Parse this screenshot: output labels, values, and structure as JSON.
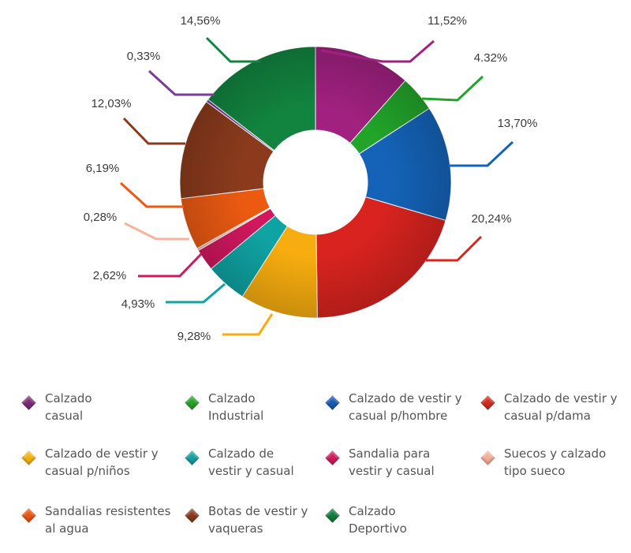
{
  "chart_data": {
    "type": "pie",
    "style": "donut",
    "slices": [
      {
        "label": "Calzado casual",
        "value": 11.52,
        "value_label": "11,52%",
        "color": "#a0217f"
      },
      {
        "label": "Calzado Industrial",
        "value": 4.32,
        "value_label": "4.32%",
        "color": "#22a42a"
      },
      {
        "label": "Calzado de vestir y casual p/hombre",
        "value": 13.7,
        "value_label": "13,70%",
        "color": "#1463b8"
      },
      {
        "label": "Calzado de vestir y casual p/dama",
        "value": 20.24,
        "value_label": "20,24%",
        "color": "#d8231f"
      },
      {
        "label": "Calzado de vestir y casual p/niños",
        "value": 9.28,
        "value_label": "9,28%",
        "color": "#f7ad0f"
      },
      {
        "label": "Calzado de vestir y casual",
        "value": 4.93,
        "value_label": "4,93%",
        "color": "#10a3a3"
      },
      {
        "label": "Sandalia para vestir y casual",
        "value": 2.62,
        "value_label": "2,62%",
        "color": "#d1175e"
      },
      {
        "label": "Suecos y calzado tipo sueco",
        "value": 0.28,
        "value_label": "0,28%",
        "color": "#f8b49a"
      },
      {
        "label": "Sandalias resistentes al agua",
        "value": 6.19,
        "value_label": "6,19%",
        "color": "#ec5a12"
      },
      {
        "label": "Botas de vestir y vaqueras",
        "value": 12.03,
        "value_label": "12,03%",
        "color": "#8b3b1c"
      },
      {
        "label": "",
        "value": 0.33,
        "value_label": "0,33%",
        "color": "#7a3d98"
      },
      {
        "label": "Calzado Deportivo",
        "value": 14.56,
        "value_label": "14,56%",
        "color": "#12843f"
      }
    ],
    "legend_placement": "bottom"
  },
  "legend": [
    {
      "text": "Calzado\ncasual",
      "color": "#7c2a7a"
    },
    {
      "text": "Calzado\nIndustrial",
      "color": "#27a129"
    },
    {
      "text": "Calzado de vestir y\ncasual p/hombre",
      "color": "#1a5bb0"
    },
    {
      "text": "Calzado de vestir y\ncasual p/dama",
      "color": "#d42a20"
    },
    {
      "text": "Calzado de vestir y\ncasual p/niños",
      "color": "#f6b10f"
    },
    {
      "text": "Calzado de\nvestir y casual",
      "color": "#13a0a3"
    },
    {
      "text": "Sandalia para\nvestir y casual",
      "color": "#cf1a5c"
    },
    {
      "text": "Suecos y calzado\ntipo sueco",
      "color": "#f7ad96"
    },
    {
      "text": "Sandalias resistentes\nal agua",
      "color": "#ea5414"
    },
    {
      "text": "Botas de vestir y\nvaqueras",
      "color": "#8a3a1c"
    },
    {
      "text": "Calzado\nDeportivo",
      "color": "#127c3e"
    }
  ]
}
